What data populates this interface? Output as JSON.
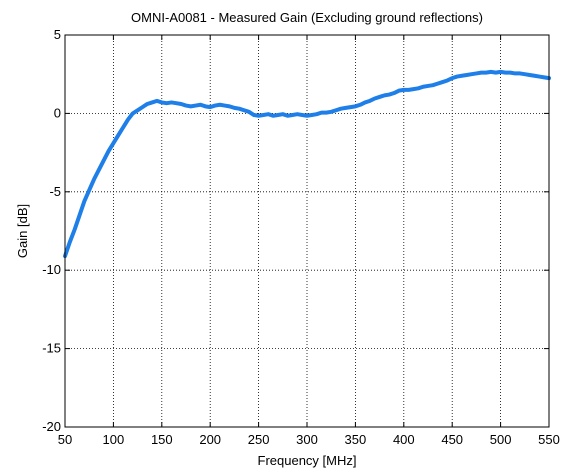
{
  "chart_data": {
    "type": "line",
    "title": "OMNI-A0081 - Measured Gain (Excluding ground reflections)",
    "xlabel": "Frequency [MHz]",
    "ylabel": "Gain [dB]",
    "xlim": [
      50,
      550
    ],
    "ylim": [
      -20,
      5
    ],
    "xticks": [
      "50",
      "100",
      "150",
      "200",
      "250",
      "300",
      "350",
      "400",
      "450",
      "500",
      "550"
    ],
    "yticks": [
      "5",
      "0",
      "-5",
      "-10",
      "-15",
      "-20"
    ],
    "grid": true,
    "line_color": "#1f7fe8",
    "series": [
      {
        "x": [
          50,
          55,
          60,
          65,
          70,
          75,
          80,
          85,
          90,
          95,
          100,
          105,
          110,
          115,
          120,
          125,
          130,
          135,
          140,
          145,
          150,
          155,
          160,
          165,
          170,
          175,
          180,
          185,
          190,
          195,
          200,
          205,
          210,
          215,
          220,
          225,
          230,
          235,
          240,
          245,
          250,
          255,
          260,
          265,
          270,
          275,
          280,
          285,
          290,
          295,
          300,
          305,
          310,
          315,
          320,
          325,
          330,
          335,
          340,
          345,
          350,
          355,
          360,
          365,
          370,
          375,
          380,
          385,
          390,
          395,
          400,
          405,
          410,
          415,
          420,
          425,
          430,
          435,
          440,
          445,
          450,
          455,
          460,
          465,
          470,
          475,
          480,
          485,
          490,
          495,
          500,
          505,
          510,
          515,
          520,
          525,
          530,
          535,
          540,
          545,
          550
        ],
        "values": [
          -9.1,
          -8.2,
          -7.4,
          -6.5,
          -5.6,
          -4.9,
          -4.2,
          -3.6,
          -3.0,
          -2.4,
          -1.9,
          -1.4,
          -0.9,
          -0.4,
          0.0,
          0.2,
          0.4,
          0.6,
          0.7,
          0.8,
          0.7,
          0.65,
          0.7,
          0.65,
          0.6,
          0.5,
          0.45,
          0.5,
          0.55,
          0.45,
          0.4,
          0.5,
          0.55,
          0.5,
          0.45,
          0.35,
          0.3,
          0.2,
          0.1,
          -0.1,
          -0.15,
          -0.1,
          -0.05,
          -0.15,
          -0.1,
          -0.05,
          -0.15,
          -0.1,
          -0.05,
          -0.1,
          -0.15,
          -0.1,
          -0.05,
          0.05,
          0.05,
          0.1,
          0.2,
          0.3,
          0.35,
          0.4,
          0.45,
          0.55,
          0.7,
          0.8,
          0.95,
          1.05,
          1.15,
          1.2,
          1.3,
          1.45,
          1.5,
          1.5,
          1.55,
          1.6,
          1.7,
          1.75,
          1.8,
          1.9,
          2.0,
          2.1,
          2.25,
          2.35,
          2.4,
          2.45,
          2.5,
          2.55,
          2.6,
          2.6,
          2.65,
          2.6,
          2.65,
          2.6,
          2.6,
          2.55,
          2.55,
          2.5,
          2.45,
          2.4,
          2.35,
          2.3,
          2.25
        ]
      }
    ]
  }
}
